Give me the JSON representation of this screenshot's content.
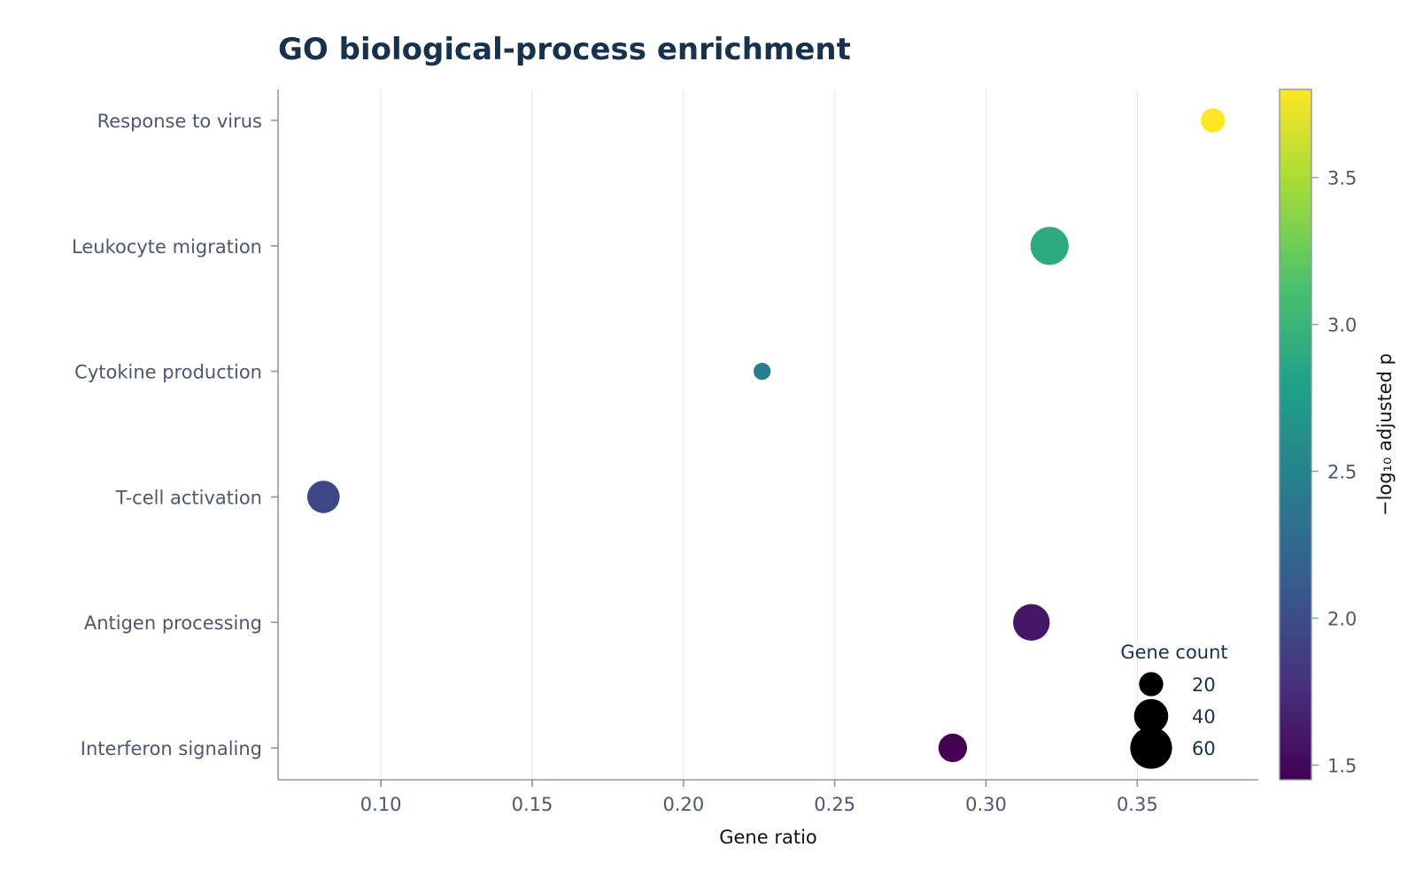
{
  "chart_data": {
    "type": "scatter",
    "title": "GO biological-process enrichment",
    "xlabel": "Gene ratio",
    "ylabel": "",
    "grid": "vertical",
    "x_range": [
      0.066,
      0.39
    ],
    "x_ticks": [
      0.1,
      0.15,
      0.2,
      0.25,
      0.3,
      0.35
    ],
    "x_tick_labels": [
      "0.10",
      "0.15",
      "0.20",
      "0.25",
      "0.30",
      "0.35"
    ],
    "categories": [
      "Response to virus",
      "Leukocyte migration",
      "Cytokine production",
      "T-cell activation",
      "Antigen processing",
      "Interferon signaling"
    ],
    "points": [
      {
        "term": "Response to virus",
        "gene_ratio": 0.375,
        "gene_count": 20,
        "neg_log10_padj": 3.8
      },
      {
        "term": "Leukocyte migration",
        "gene_ratio": 0.321,
        "gene_count": 50,
        "neg_log10_padj": 2.9
      },
      {
        "term": "Cytokine production",
        "gene_ratio": 0.226,
        "gene_count": 10,
        "neg_log10_padj": 2.45
      },
      {
        "term": "T-cell activation",
        "gene_ratio": 0.081,
        "gene_count": 36,
        "neg_log10_padj": 1.95
      },
      {
        "term": "Antigen processing",
        "gene_ratio": 0.315,
        "gene_count": 46,
        "neg_log10_padj": 1.6
      },
      {
        "term": "Interferon signaling",
        "gene_ratio": 0.289,
        "gene_count": 28,
        "neg_log10_padj": 1.45
      }
    ],
    "colorbar": {
      "label": "−log₁₀ adjusted p",
      "range": [
        1.45,
        3.8
      ],
      "ticks": [
        1.5,
        2.0,
        2.5,
        3.0,
        3.5
      ],
      "tick_labels": [
        "1.5",
        "2.0",
        "2.5",
        "3.0",
        "3.5"
      ],
      "colormap": "viridis",
      "stops": [
        "#440154",
        "#46327e",
        "#365c8d",
        "#277f8e",
        "#1fa187",
        "#4ac16d",
        "#a0da39",
        "#fde725"
      ]
    },
    "size_legend": {
      "title": "Gene count",
      "placement": "bottom-right",
      "entries": [
        {
          "label": "20",
          "value": 20
        },
        {
          "label": "40",
          "value": 40
        },
        {
          "label": "60",
          "value": 60
        }
      ]
    },
    "colors": {
      "title": "#17324d",
      "axis": "#8a95b0",
      "grid": "#e6e9f0",
      "tick_text": "#4b5870",
      "legend_marker": "#000000"
    }
  }
}
